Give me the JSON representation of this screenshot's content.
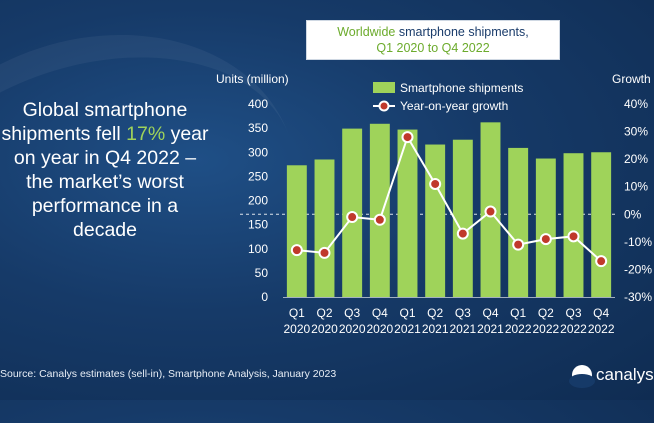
{
  "headline": {
    "before": "Global smartphone shipments fell ",
    "accent": "17%",
    "after": " year on year in Q4 2022 – the market’s worst performance in a decade"
  },
  "title_box": {
    "line1_a": "Worldwide",
    "line1_b": " smartphone shipments,",
    "line2": "Q1 2020 to Q4 2022"
  },
  "source": "Source: Canalys estimates (sell-in), Smartphone Analysis, January 2023",
  "logo": {
    "text": "canalys"
  },
  "chart_data": {
    "type": "bar",
    "title": "Worldwide smartphone shipments, Q1 2020 to Q4 2022",
    "categories": [
      [
        "Q1",
        "2020"
      ],
      [
        "Q2",
        "2020"
      ],
      [
        "Q3",
        "2020"
      ],
      [
        "Q4",
        "2020"
      ],
      [
        "Q1",
        "2021"
      ],
      [
        "Q2",
        "2021"
      ],
      [
        "Q3",
        "2021"
      ],
      [
        "Q4",
        "2021"
      ],
      [
        "Q1",
        "2022"
      ],
      [
        "Q2",
        "2022"
      ],
      [
        "Q3",
        "2022"
      ],
      [
        "Q4",
        "2022"
      ]
    ],
    "ylabel_left": "Units (million)",
    "ylabel_right": "Growth",
    "ylim_left": [
      0,
      400
    ],
    "yticks_left": [
      "0",
      "50",
      "100",
      "150",
      "200",
      "250",
      "300",
      "350",
      "400"
    ],
    "ylim_right": [
      -30,
      40
    ],
    "yticks_right": [
      "-30%",
      "-20%",
      "-10%",
      "0%",
      "10%",
      "20%",
      "30%",
      "40%"
    ],
    "series": [
      {
        "name": "Smartphone shipments",
        "type": "bar",
        "axis": "left",
        "color": "#9fd35a",
        "values": [
          273,
          285,
          349,
          359,
          347,
          316,
          326,
          362,
          309,
          287,
          298,
          300
        ]
      },
      {
        "name": "Year-on-year growth",
        "type": "line",
        "axis": "right",
        "color": "#ffffff",
        "marker_fill": "#c0392b",
        "values": [
          -13,
          -14,
          -1,
          -2,
          28,
          11,
          -7,
          1,
          -11,
          -9,
          -8,
          -17
        ]
      }
    ],
    "reference_line": {
      "axis": "right",
      "value": 0,
      "style": "dashed"
    },
    "legend_placement": "top"
  }
}
